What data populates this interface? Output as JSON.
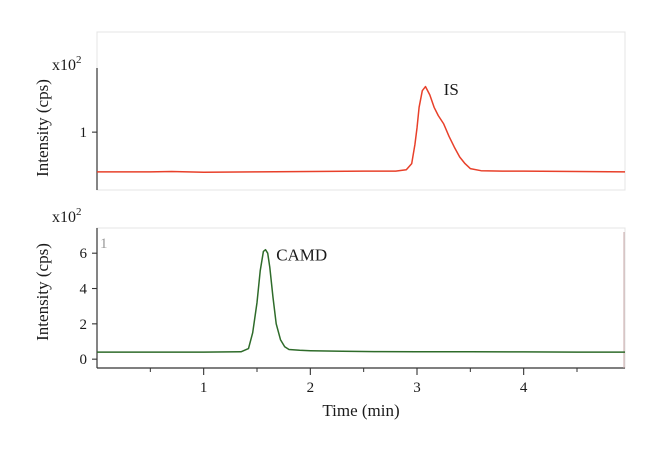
{
  "chart_data": [
    {
      "type": "line",
      "color": "#e8402a",
      "ylabel": "Intensity (cps)",
      "y_multiplier_base": "x10",
      "y_multiplier_exp": "2",
      "yticks": [
        1
      ],
      "ylim": [
        0.35,
        1.75
      ],
      "xlim": [
        0,
        4.95
      ],
      "annotations": [
        {
          "text": "IS",
          "x": 3.25,
          "y": 1.45
        }
      ],
      "series": [
        {
          "x": [
            0,
            0.5,
            0.7,
            1.0,
            1.5,
            2.0,
            2.5,
            2.8,
            2.9,
            2.95,
            2.98,
            3.0,
            3.02,
            3.05,
            3.08,
            3.12,
            3.16,
            3.2,
            3.25,
            3.3,
            3.35,
            3.4,
            3.45,
            3.5,
            3.6,
            3.8,
            4.0,
            4.5,
            4.95
          ],
          "y": [
            0.52,
            0.52,
            0.525,
            0.515,
            0.52,
            0.525,
            0.53,
            0.53,
            0.545,
            0.62,
            0.85,
            1.05,
            1.3,
            1.5,
            1.55,
            1.45,
            1.3,
            1.2,
            1.1,
            0.95,
            0.82,
            0.7,
            0.62,
            0.56,
            0.535,
            0.53,
            0.53,
            0.525,
            0.52
          ]
        }
      ]
    },
    {
      "type": "line",
      "color": "#2e6b2a",
      "ylabel": "Intensity (cps)",
      "y_multiplier_base": "x10",
      "y_multiplier_exp": "2",
      "yticks": [
        0,
        2,
        4,
        6
      ],
      "ylim": [
        -0.5,
        7.2
      ],
      "xlim": [
        0,
        4.95
      ],
      "xticks": [
        1,
        2,
        3,
        4
      ],
      "xminor": [
        0.5,
        1.5,
        2.5,
        3.5,
        4.5
      ],
      "xlabel": "Time (min)",
      "panel_mark": "1",
      "annotations": [
        {
          "text": "CAMD",
          "x": 1.68,
          "y": 5.6
        }
      ],
      "series": [
        {
          "x": [
            0,
            0.5,
            1.0,
            1.35,
            1.42,
            1.46,
            1.5,
            1.53,
            1.56,
            1.58,
            1.6,
            1.62,
            1.65,
            1.68,
            1.72,
            1.76,
            1.8,
            1.9,
            2.0,
            2.3,
            2.6,
            3.0,
            3.5,
            4.0,
            4.5,
            4.95
          ],
          "y": [
            0.4,
            0.4,
            0.4,
            0.42,
            0.6,
            1.5,
            3.2,
            5.0,
            6.1,
            6.2,
            6.0,
            5.2,
            3.5,
            2.0,
            1.1,
            0.7,
            0.55,
            0.5,
            0.48,
            0.45,
            0.43,
            0.42,
            0.42,
            0.41,
            0.4,
            0.4
          ]
        }
      ]
    }
  ]
}
